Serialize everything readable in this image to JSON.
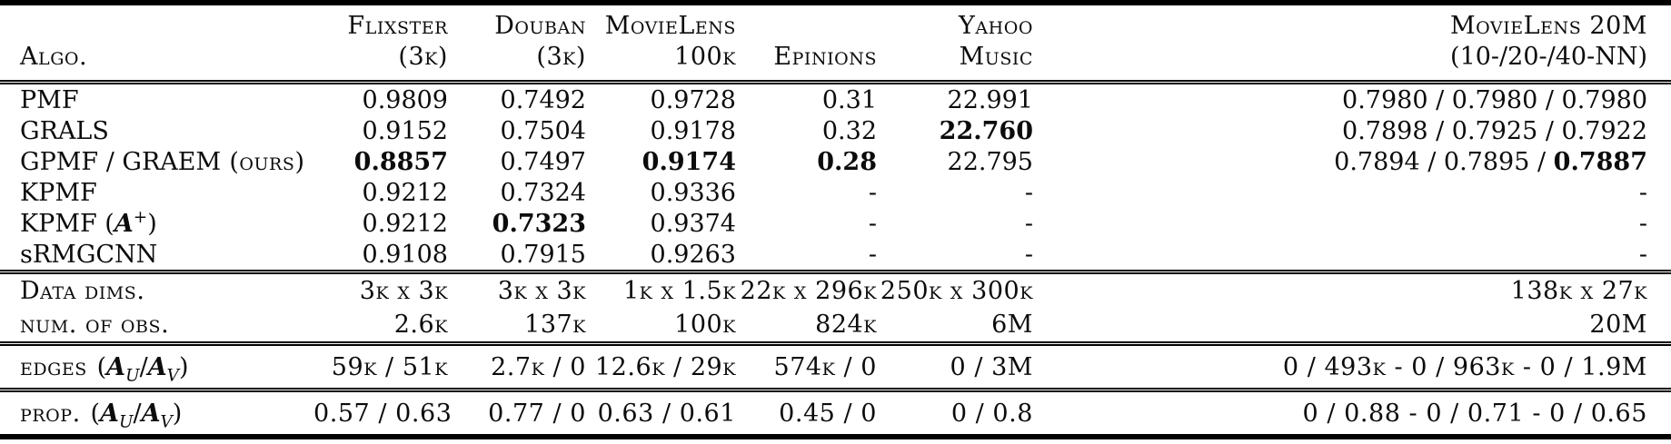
{
  "header": {
    "algo": "Algo.",
    "columns": [
      {
        "l1": "Flixster",
        "l2": "(3k)"
      },
      {
        "l1": "Douban",
        "l2": "(3k)"
      },
      {
        "l1": "MovieLens",
        "l2": "100k"
      },
      {
        "l1": "Epinions",
        "l2": ""
      },
      {
        "l1": "Yahoo",
        "l2": "Music"
      },
      {
        "l1": "MovieLens 20M",
        "l2": "(10-/20-/40-NN)"
      }
    ]
  },
  "symbols": {
    "open": "(",
    "close": ")",
    "slash": "/"
  },
  "matrix": {
    "a": "A",
    "u": "U",
    "v": "V",
    "plus": "+"
  },
  "algos": [
    {
      "name": "PMF",
      "cells": [
        {
          "v": "0.9809"
        },
        {
          "v": "0.7492"
        },
        {
          "v": "0.9728"
        },
        {
          "v": "0.31"
        },
        {
          "v": "22.991"
        }
      ],
      "ml": {
        "pre": "0.7980 / 0.7980 / 0.7980",
        "bold": ""
      }
    },
    {
      "name": "GRALS",
      "cells": [
        {
          "v": "0.9152"
        },
        {
          "v": "0.7504"
        },
        {
          "v": "0.9178"
        },
        {
          "v": "0.32"
        },
        {
          "v": "22.760",
          "b": true
        }
      ],
      "ml": {
        "pre": "0.7898 / 0.7925 / 0.7922",
        "bold": ""
      }
    },
    {
      "name": "GPMF / GRAEM",
      "suffix": "(ours)",
      "cells": [
        {
          "v": "0.8857",
          "b": true
        },
        {
          "v": "0.7497"
        },
        {
          "v": "0.9174",
          "b": true
        },
        {
          "v": "0.28",
          "b": true
        },
        {
          "v": "22.795"
        }
      ],
      "ml": {
        "pre": "0.7894 / 0.7895 / ",
        "bold": "0.7887"
      }
    },
    {
      "name": "KPMF",
      "cells": [
        {
          "v": "0.9212"
        },
        {
          "v": "0.7324"
        },
        {
          "v": "0.9336"
        },
        {
          "v": "-"
        },
        {
          "v": "-"
        }
      ],
      "ml": {
        "pre": "-",
        "bold": ""
      }
    },
    {
      "pre": "KPMF (",
      "mat": "A",
      "sup": "+",
      "post": ")",
      "cells": [
        {
          "v": "0.9212"
        },
        {
          "v": "0.7323",
          "b": true
        },
        {
          "v": "0.9374"
        },
        {
          "v": "-"
        },
        {
          "v": "-"
        }
      ],
      "ml": {
        "pre": "-",
        "bold": ""
      }
    },
    {
      "name": "sRMGCNN",
      "cells": [
        {
          "v": "0.9108"
        },
        {
          "v": "0.7915"
        },
        {
          "v": "0.9263"
        },
        {
          "v": "-"
        },
        {
          "v": "-"
        }
      ],
      "ml": {
        "pre": "-",
        "bold": ""
      }
    }
  ],
  "stats": [
    {
      "label": "Data dims.",
      "cells": [
        "3k x 3k",
        "3k x 3k",
        "1k x 1.5k",
        "22k x 296k",
        "250k x 300k",
        "138k x 27k"
      ]
    },
    {
      "label": "num. of obs.",
      "cells": [
        "2.6k",
        "137k",
        "100k",
        "824k",
        "6M",
        "20M"
      ]
    }
  ],
  "edges": {
    "label": "edges",
    "cells": [
      "59k / 51k",
      "2.7k / 0",
      "12.6k / 29k",
      "574k / 0",
      "0 / 3M",
      "0 / 493k - 0 / 963k - 0 / 1.9M"
    ]
  },
  "prop": {
    "label": "prop.",
    "cells": [
      "0.57 / 0.63",
      "0.77 / 0",
      "0.63 / 0.61",
      "0.45 / 0",
      "0 / 0.8",
      "0 / 0.88 - 0 / 0.71 - 0 / 0.65"
    ]
  }
}
